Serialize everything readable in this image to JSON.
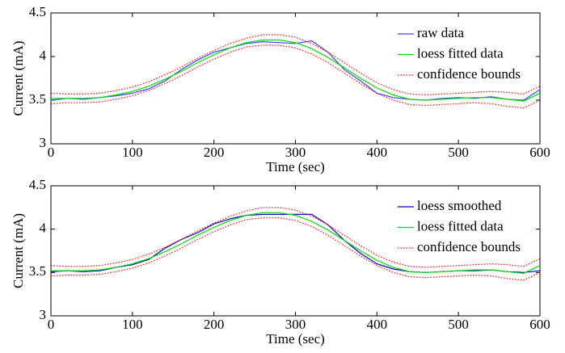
{
  "chart_data": [
    {
      "type": "line",
      "xlabel": "Time (sec)",
      "ylabel": "Current (mA)",
      "x": [
        0,
        20,
        40,
        60,
        80,
        100,
        120,
        140,
        160,
        180,
        200,
        220,
        240,
        260,
        280,
        300,
        320,
        340,
        360,
        380,
        400,
        420,
        440,
        460,
        480,
        500,
        520,
        540,
        560,
        580,
        600
      ],
      "xlim": [
        0,
        600
      ],
      "xticks": [
        0,
        100,
        200,
        300,
        400,
        500,
        600
      ],
      "ylim": [
        3,
        4.5
      ],
      "yticks": [
        3,
        3.5,
        4,
        4.5
      ],
      "legend": "upper right",
      "series": [
        {
          "name": "raw data",
          "color": "#4040ff",
          "style": "solid",
          "values": [
            3.5,
            3.52,
            3.51,
            3.53,
            3.55,
            3.58,
            3.63,
            3.72,
            3.85,
            3.96,
            4.05,
            4.1,
            4.15,
            4.17,
            4.16,
            4.15,
            4.18,
            4.05,
            3.85,
            3.72,
            3.58,
            3.53,
            3.51,
            3.5,
            3.52,
            3.53,
            3.52,
            3.54,
            3.51,
            3.5,
            3.62
          ]
        },
        {
          "name": "loess fitted data",
          "color": "#00dd00",
          "style": "solid",
          "values": [
            3.52,
            3.52,
            3.52,
            3.53,
            3.56,
            3.6,
            3.66,
            3.74,
            3.83,
            3.93,
            4.02,
            4.1,
            4.16,
            4.19,
            4.19,
            4.16,
            4.09,
            3.99,
            3.87,
            3.75,
            3.64,
            3.56,
            3.51,
            3.5,
            3.51,
            3.52,
            3.53,
            3.53,
            3.51,
            3.49,
            3.58
          ]
        },
        {
          "name": "confidence bounds",
          "color": "#ff0000",
          "style": "dotted",
          "upper": [
            3.58,
            3.57,
            3.57,
            3.58,
            3.61,
            3.65,
            3.71,
            3.79,
            3.88,
            3.98,
            4.07,
            4.15,
            4.21,
            4.25,
            4.25,
            4.22,
            4.15,
            4.05,
            3.93,
            3.81,
            3.7,
            3.62,
            3.57,
            3.56,
            3.57,
            3.58,
            3.59,
            3.6,
            3.59,
            3.57,
            3.66
          ],
          "lower": [
            3.46,
            3.47,
            3.47,
            3.48,
            3.51,
            3.55,
            3.61,
            3.69,
            3.78,
            3.88,
            3.97,
            4.05,
            4.11,
            4.13,
            4.13,
            4.1,
            4.03,
            3.93,
            3.81,
            3.69,
            3.58,
            3.5,
            3.45,
            3.44,
            3.45,
            3.46,
            3.47,
            3.46,
            3.43,
            3.41,
            3.5
          ]
        }
      ]
    },
    {
      "type": "line",
      "xlabel": "Time (sec)",
      "ylabel": "Current (mA)",
      "x": [
        0,
        20,
        40,
        60,
        80,
        100,
        120,
        140,
        160,
        180,
        200,
        220,
        240,
        260,
        280,
        300,
        320,
        340,
        360,
        380,
        400,
        420,
        440,
        460,
        480,
        500,
        520,
        540,
        560,
        580,
        600
      ],
      "xlim": [
        0,
        600
      ],
      "xticks": [
        0,
        100,
        200,
        300,
        400,
        500,
        600
      ],
      "ylim": [
        3,
        4.5
      ],
      "yticks": [
        3,
        3.5,
        4,
        4.5
      ],
      "legend": "upper right",
      "series": [
        {
          "name": "loess smoothed",
          "color": "#0000cc",
          "style": "solid",
          "values": [
            3.51,
            3.52,
            3.51,
            3.52,
            3.56,
            3.59,
            3.65,
            3.78,
            3.88,
            3.96,
            4.06,
            4.12,
            4.16,
            4.17,
            4.17,
            4.17,
            4.17,
            4.05,
            3.87,
            3.72,
            3.6,
            3.54,
            3.51,
            3.5,
            3.51,
            3.52,
            3.52,
            3.53,
            3.51,
            3.5,
            3.52
          ]
        },
        {
          "name": "loess fitted data",
          "color": "#00dd00",
          "style": "solid",
          "values": [
            3.52,
            3.52,
            3.52,
            3.53,
            3.56,
            3.6,
            3.66,
            3.74,
            3.83,
            3.93,
            4.02,
            4.1,
            4.16,
            4.19,
            4.19,
            4.16,
            4.09,
            3.99,
            3.87,
            3.75,
            3.64,
            3.56,
            3.51,
            3.5,
            3.51,
            3.52,
            3.53,
            3.53,
            3.51,
            3.49,
            3.58
          ]
        },
        {
          "name": "confidence bounds",
          "color": "#ff0000",
          "style": "dotted",
          "upper": [
            3.58,
            3.57,
            3.57,
            3.58,
            3.61,
            3.65,
            3.71,
            3.79,
            3.88,
            3.98,
            4.07,
            4.15,
            4.21,
            4.25,
            4.25,
            4.22,
            4.15,
            4.05,
            3.93,
            3.81,
            3.7,
            3.62,
            3.57,
            3.56,
            3.57,
            3.58,
            3.59,
            3.6,
            3.59,
            3.57,
            3.66
          ],
          "lower": [
            3.46,
            3.47,
            3.47,
            3.48,
            3.51,
            3.55,
            3.61,
            3.69,
            3.78,
            3.88,
            3.97,
            4.05,
            4.11,
            4.13,
            4.13,
            4.1,
            4.03,
            3.93,
            3.81,
            3.69,
            3.58,
            3.5,
            3.45,
            3.44,
            3.45,
            3.46,
            3.47,
            3.46,
            3.43,
            3.41,
            3.5
          ]
        }
      ]
    }
  ]
}
